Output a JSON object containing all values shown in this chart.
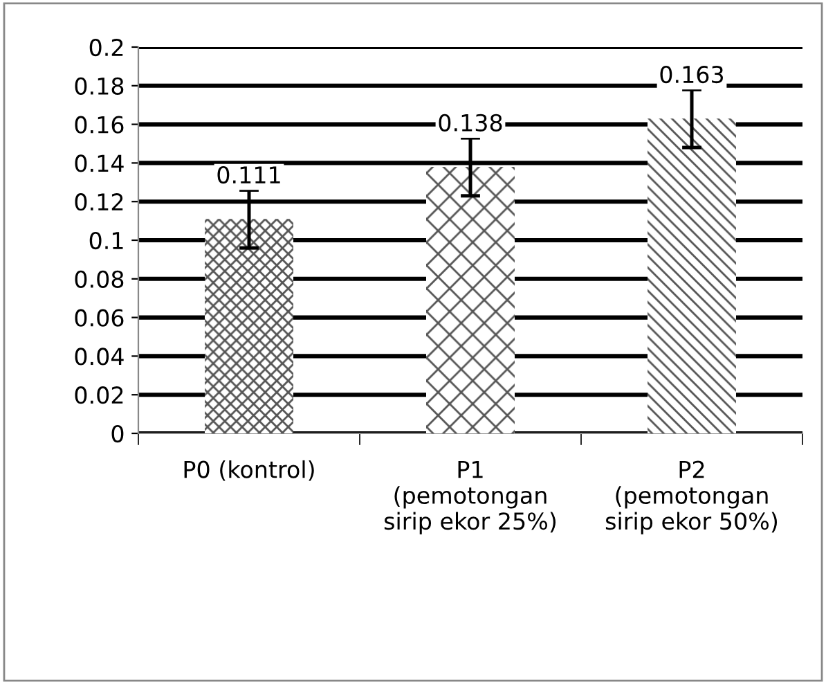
{
  "chart_data": {
    "type": "bar",
    "categories": [
      "P0 (kontrol)",
      "P1\n(pemotongan\nsirip ekor 25%)",
      "P2\n(pemotongan\nsirip ekor 50%)"
    ],
    "values": [
      0.111,
      0.138,
      0.163
    ],
    "errors": [
      0.015,
      0.015,
      0.015
    ],
    "colors": [
      "#555555",
      "#555555",
      "#555555"
    ],
    "ylim": [
      0,
      0.2
    ],
    "yticks": [
      0,
      0.02,
      0.04,
      0.06,
      0.08,
      0.1,
      0.12,
      0.14,
      0.16,
      0.18,
      0.2
    ],
    "grid": "y",
    "data_labels": true
  }
}
